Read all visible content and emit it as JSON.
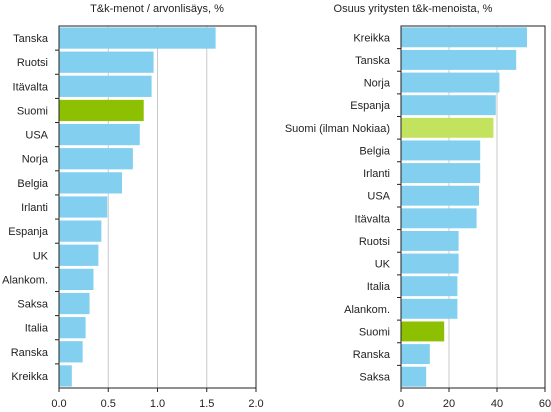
{
  "colors": {
    "bar": "#82CFEF",
    "highlight_dark": "#8CC000",
    "highlight_light": "#C3E25E",
    "frame": "#222222",
    "grid": "#C9C9C9"
  },
  "chart_data": [
    {
      "type": "bar",
      "orientation": "horizontal",
      "title": "T&k-menot / arvonlisäys, %",
      "categories": [
        "Tanska",
        "Ruotsi",
        "Itävalta",
        "Suomi",
        "USA",
        "Norja",
        "Belgia",
        "Irlanti",
        "Espanja",
        "UK",
        "Alankom.",
        "Saksa",
        "Italia",
        "Ranska",
        "Kreikka"
      ],
      "values": [
        1.59,
        0.96,
        0.94,
        0.86,
        0.82,
        0.75,
        0.64,
        0.49,
        0.43,
        0.4,
        0.35,
        0.31,
        0.27,
        0.24,
        0.13
      ],
      "highlight": {
        "Suomi": "highlight_dark"
      },
      "xlim": [
        0,
        2.0
      ],
      "xticks": [
        "0.0",
        "0.5",
        "1.0",
        "1.5",
        "2.0"
      ],
      "grid": "vertical"
    },
    {
      "type": "bar",
      "orientation": "horizontal",
      "title": "Osuus yritysten t&k-menoista, %",
      "categories": [
        "Kreikka",
        "Tanska",
        "Norja",
        "Espanja",
        "Suomi (ilman Nokiaa)",
        "Belgia",
        "Irlanti",
        "USA",
        "Itävalta",
        "Ruotsi",
        "UK",
        "Italia",
        "Alankom.",
        "Suomi",
        "Ranska",
        "Saksa"
      ],
      "values": [
        52.5,
        48,
        41,
        39.5,
        38.5,
        33,
        33,
        32.5,
        31.5,
        24,
        24,
        23.5,
        23.5,
        18,
        12,
        10.5
      ],
      "highlight": {
        "Suomi (ilman Nokiaa)": "highlight_light",
        "Suomi": "highlight_dark"
      },
      "xlim": [
        0,
        60
      ],
      "xticks": [
        "0",
        "20",
        "40",
        "60"
      ],
      "grid": "vertical"
    }
  ]
}
